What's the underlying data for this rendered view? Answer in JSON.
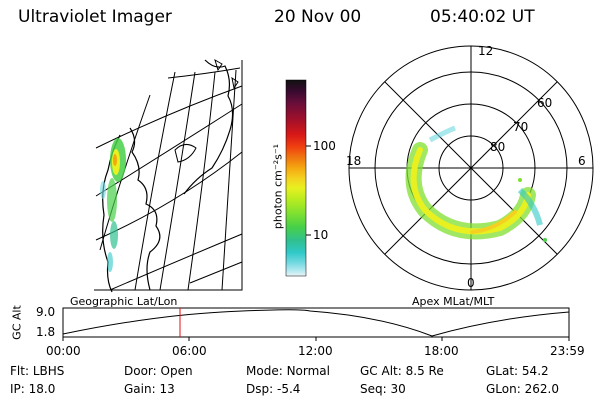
{
  "header": {
    "instrument": "Ultraviolet Imager",
    "date": "20 Nov 00",
    "time": "05:40:02 UT"
  },
  "colorbar": {
    "unit_label": "photon cm⁻²s⁻¹",
    "ticks": [
      "100",
      "10"
    ],
    "colors": [
      "#111111",
      "#3a0a30",
      "#6a0e3a",
      "#a0102a",
      "#d81818",
      "#f04010",
      "#f07a10",
      "#f4a810",
      "#f4d020",
      "#e8f020",
      "#b8ec20",
      "#80e030",
      "#48d048",
      "#30c090",
      "#30c8c8",
      "#70d8e0",
      "#b0e8f0",
      "#e8f4f8"
    ]
  },
  "left_panel": {
    "label": "Geographic Lat/Lon"
  },
  "right_panel": {
    "label": "Apex MLat/MLT",
    "mlt_labels": [
      "12",
      "18",
      "6",
      "0"
    ],
    "lat_labels": [
      "60",
      "70",
      "80"
    ]
  },
  "orbit_plot": {
    "ylabel": "GC Alt",
    "yticks": [
      "9.0",
      "1.8"
    ],
    "xticks": [
      "00:00",
      "06:00",
      "12:00",
      "18:00",
      "23:59"
    ],
    "marker_time": "05:40"
  },
  "footer": {
    "row1": [
      {
        "key": "Flt:",
        "val": "LBHS"
      },
      {
        "key": "Door:",
        "val": "Open"
      },
      {
        "key": "Mode:",
        "val": "Normal"
      },
      {
        "key": "GC Alt:",
        "val": "8.5 Re"
      },
      {
        "key": "GLat:",
        "val": "54.2"
      }
    ],
    "row2": [
      {
        "key": "IP:",
        "val": "18.0"
      },
      {
        "key": "Gain:",
        "val": "13"
      },
      {
        "key": "Dsp:",
        "val": "-5.4"
      },
      {
        "key": "Seq:",
        "val": "30"
      },
      {
        "key": "GLon:",
        "val": "262.0"
      }
    ]
  }
}
